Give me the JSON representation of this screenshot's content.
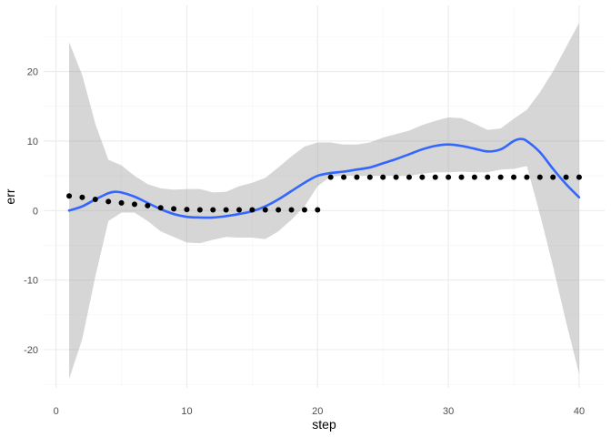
{
  "chart_data": {
    "type": "scatter",
    "title": "",
    "xlabel": "step",
    "ylabel": "err",
    "xlim": [
      -0.95,
      41.95
    ],
    "ylim": [
      -25.5,
      29.5
    ],
    "x_ticks": [
      0,
      10,
      20,
      30,
      40
    ],
    "x_tick_labels": [
      "0",
      "10",
      "20",
      "30",
      "40"
    ],
    "y_ticks": [
      -20,
      -10,
      0,
      10,
      20
    ],
    "y_tick_labels": [
      "-20",
      "-10",
      "0",
      "10",
      "20"
    ],
    "grid": true,
    "legend": "none",
    "colors": {
      "points": "#000000",
      "smooth_line": "#3366FF",
      "ribbon": "#999999",
      "grid_major": "#ebebeb",
      "grid_minor": "#f5f5f5"
    },
    "points": {
      "x": [
        1,
        2,
        3,
        4,
        5,
        6,
        7,
        8,
        9,
        10,
        11,
        12,
        13,
        14,
        15,
        16,
        17,
        18,
        19,
        20,
        21,
        22,
        23,
        24,
        25,
        26,
        27,
        28,
        29,
        30,
        31,
        32,
        33,
        34,
        35,
        36,
        37,
        38,
        39,
        40
      ],
      "y": [
        2.1,
        1.9,
        1.6,
        1.3,
        1.1,
        0.9,
        0.7,
        0.4,
        0.25,
        0.15,
        0.1,
        0.1,
        0.1,
        0.1,
        0.1,
        0.1,
        0.1,
        0.1,
        0.1,
        0.1,
        4.8,
        4.8,
        4.8,
        4.8,
        4.8,
        4.8,
        4.8,
        4.8,
        4.8,
        4.8,
        4.8,
        4.8,
        4.8,
        4.8,
        4.8,
        4.8,
        4.8,
        4.8,
        4.8,
        4.8
      ]
    },
    "smooth": {
      "x": [
        1,
        2,
        3,
        4,
        4.5,
        5,
        6,
        7,
        8,
        9,
        10,
        11,
        12,
        13,
        14,
        15,
        16,
        17,
        18,
        19,
        20,
        21,
        22,
        23,
        24,
        25,
        26,
        27,
        28,
        29,
        30,
        31,
        32,
        33,
        34,
        35,
        35.5,
        36,
        37,
        38,
        39,
        40
      ],
      "y": [
        0.0,
        0.6,
        1.6,
        2.5,
        2.7,
        2.6,
        2.0,
        1.1,
        0.2,
        -0.5,
        -0.9,
        -1.0,
        -1.0,
        -0.8,
        -0.5,
        -0.1,
        0.6,
        1.6,
        2.8,
        4.0,
        5.0,
        5.4,
        5.6,
        5.9,
        6.2,
        6.8,
        7.4,
        8.1,
        8.8,
        9.3,
        9.5,
        9.3,
        8.9,
        8.5,
        8.8,
        10.0,
        10.3,
        10.0,
        8.4,
        6.0,
        3.8,
        1.9
      ]
    },
    "band": {
      "x": [
        1,
        2,
        3,
        4,
        5,
        6,
        7,
        8,
        9,
        10,
        11,
        12,
        13,
        14,
        15,
        16,
        17,
        18,
        19,
        20,
        21,
        22,
        23,
        24,
        25,
        26,
        27,
        28,
        29,
        30,
        31,
        32,
        33,
        34,
        35,
        36,
        37,
        38,
        39,
        40
      ],
      "upper": [
        24.2,
        19.5,
        12.5,
        7.3,
        6.5,
        5.0,
        3.8,
        3.2,
        3.0,
        3.1,
        3.1,
        2.6,
        2.7,
        3.5,
        4.0,
        4.7,
        6.2,
        7.8,
        9.2,
        9.8,
        9.8,
        9.5,
        9.5,
        9.8,
        10.5,
        11.0,
        11.5,
        12.3,
        12.9,
        13.4,
        13.3,
        12.5,
        11.6,
        11.8,
        13.2,
        14.5,
        17.0,
        20.0,
        23.5,
        27.0
      ],
      "lower": [
        -24.2,
        -18.5,
        -9.5,
        -1.5,
        -0.3,
        -0.3,
        -1.5,
        -3.0,
        -3.8,
        -4.6,
        -4.7,
        -4.2,
        -3.8,
        -3.9,
        -3.9,
        -4.1,
        -3.0,
        -1.3,
        0.6,
        3.5,
        4.9,
        5.0,
        5.0,
        5.0,
        5.0,
        5.0,
        5.0,
        5.3,
        5.5,
        5.5,
        5.6,
        5.5,
        5.5,
        5.9,
        6.0,
        6.4,
        -0.5,
        -8.0,
        -16.0,
        -23.5
      ]
    }
  }
}
